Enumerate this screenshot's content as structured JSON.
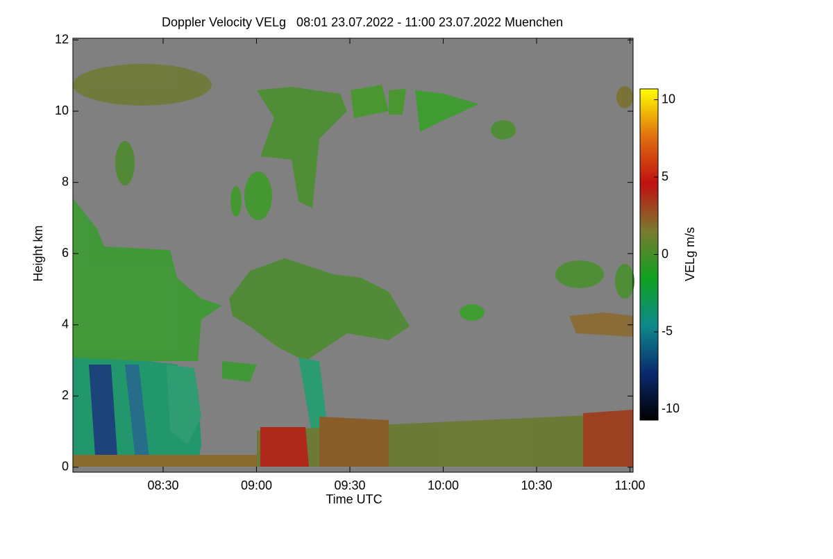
{
  "chart_data": {
    "type": "heatmap",
    "title": "Doppler Velocity VELg   08:01 23.07.2022 - 11:00 23.07.2022 Muenchen",
    "x_label": "Time UTC",
    "y_label": "Height km",
    "xlim": [
      481,
      661
    ],
    "xticks": [
      {
        "value": 510,
        "label": "08:30"
      },
      {
        "value": 540,
        "label": "09:00"
      },
      {
        "value": 570,
        "label": "09:30"
      },
      {
        "value": 600,
        "label": "10:00"
      },
      {
        "value": 630,
        "label": "10:30"
      },
      {
        "value": 660,
        "label": "11:00"
      }
    ],
    "ylim": [
      -0.14,
      12.05
    ],
    "yticks": [
      0,
      2,
      4,
      6,
      8,
      10,
      12
    ],
    "colorbar": {
      "label": "VELg m/s",
      "zlim": [
        -10.7,
        10.7
      ],
      "zticks": [
        -10,
        -5,
        0,
        5,
        10
      ],
      "colormap": [
        "#000000",
        "#0a2a6e",
        "#0e8a8a",
        "#10a020",
        "#7a7a30",
        "#c01010",
        "#e07010",
        "#ffff00"
      ]
    },
    "background": "#808080"
  }
}
